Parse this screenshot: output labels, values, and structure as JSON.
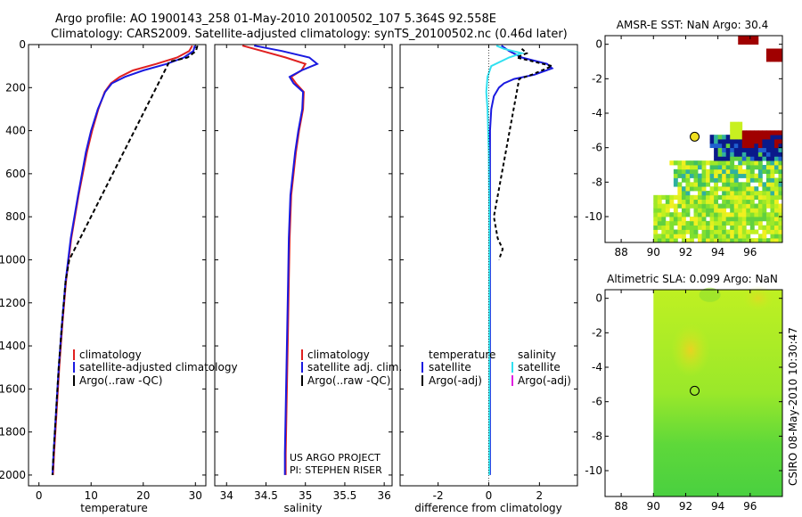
{
  "title": {
    "line1": "Argo profile: AO 1900143_258 01-May-2010 20100502_107 5.364S 92.558E",
    "line2": "Climatology: CARS2009. Satellite-adjusted climatology: synTS_20100502.nc (0.46d later)"
  },
  "colors": {
    "climatology": "#e02020",
    "satellite": "#1a1ae0",
    "argo": "#000000",
    "sal_satellite": "#30e0f0",
    "sal_argo": "#e020e0",
    "sst_land": "#ffffff"
  },
  "chart_data": [
    {
      "type": "line",
      "id": "temperature",
      "xlabel": "temperature",
      "ylabel": "",
      "xlim": [
        -2,
        32
      ],
      "ylim": [
        2050,
        0
      ],
      "xticks": [
        0,
        10,
        20,
        30
      ],
      "xtick_labels": [
        "0",
        "10",
        "20",
        "30"
      ],
      "yticks": [
        0,
        200,
        400,
        600,
        800,
        1000,
        1200,
        1400,
        1600,
        1800,
        2000
      ],
      "ytick_labels": [
        "0",
        "200",
        "400",
        "600",
        "800",
        "1000",
        "1200",
        "1400",
        "1600",
        "1800",
        "2000"
      ],
      "legend": [
        "climatology",
        "satellite-adjusted climatology",
        "Argo(..raw -QC)"
      ],
      "series": [
        {
          "name": "climatology",
          "depth": [
            5,
            30,
            60,
            90,
            120,
            150,
            180,
            220,
            300,
            400,
            500,
            700,
            900,
            1100,
            1300,
            1500,
            1700,
            1900,
            2000
          ],
          "values": [
            29.4,
            28.8,
            26.5,
            22.5,
            18,
            15.5,
            13.8,
            12.6,
            11.4,
            10.2,
            9.2,
            7.6,
            6.2,
            5.2,
            4.5,
            3.9,
            3.4,
            2.9,
            2.7
          ]
        },
        {
          "name": "satellite",
          "depth": [
            5,
            30,
            60,
            90,
            120,
            150,
            180,
            220,
            300,
            400,
            500,
            700,
            900,
            1100,
            1300,
            1500,
            1700,
            1900,
            2000
          ],
          "values": [
            29.9,
            29.6,
            27.8,
            24.5,
            20,
            16.5,
            14,
            12.7,
            11.3,
            10,
            9,
            7.5,
            6.1,
            5.1,
            4.4,
            3.8,
            3.3,
            2.8,
            2.6
          ]
        },
        {
          "name": "Argo",
          "depth": [
            5,
            30,
            60,
            80,
            1000,
            1100,
            1300,
            1500,
            1700,
            1900,
            2000
          ],
          "values": [
            30.4,
            30.1,
            28.5,
            25,
            5.8,
            5.1,
            4.4,
            3.8,
            3.3,
            2.8,
            2.6
          ]
        }
      ]
    },
    {
      "type": "line",
      "id": "salinity",
      "xlabel": "salinity",
      "xlim": [
        33.85,
        36.1
      ],
      "ylim": [
        2050,
        0
      ],
      "xticks": [
        34,
        34.5,
        35,
        35.5,
        36
      ],
      "xtick_labels": [
        "34",
        "34.5",
        "35",
        "35.5",
        "36"
      ],
      "legend": [
        "climatology",
        "satellite adj. clim.",
        "Argo(..raw -QC)"
      ],
      "annotation_line1": "US ARGO PROJECT",
      "annotation_line2": "PI: STEPHEN RISER",
      "series": [
        {
          "name": "climatology",
          "depth": [
            5,
            30,
            60,
            90,
            120,
            150,
            180,
            220,
            300,
            400,
            500,
            700,
            900,
            1100,
            1300,
            1500,
            1700,
            1900,
            2000
          ],
          "values": [
            34.2,
            34.45,
            34.75,
            35.0,
            34.95,
            34.82,
            34.88,
            34.98,
            34.97,
            34.92,
            34.88,
            34.82,
            34.8,
            34.79,
            34.78,
            34.77,
            34.76,
            34.75,
            34.75
          ]
        },
        {
          "name": "satellite",
          "depth": [
            5,
            30,
            60,
            90,
            120,
            150,
            180,
            220,
            300,
            400,
            500,
            700,
            900,
            1100,
            1300,
            1500,
            1700,
            1900,
            2000
          ],
          "values": [
            34.35,
            34.7,
            35.05,
            35.15,
            34.95,
            34.8,
            34.85,
            34.97,
            34.96,
            34.91,
            34.87,
            34.81,
            34.79,
            34.78,
            34.77,
            34.76,
            34.75,
            34.74,
            34.74
          ]
        }
      ]
    },
    {
      "type": "line",
      "id": "difference",
      "xlabel": "difference from climatology",
      "xlim": [
        -3.5,
        3.5
      ],
      "ylim": [
        2050,
        0
      ],
      "xticks": [
        -2,
        0,
        2
      ],
      "xtick_labels": [
        "-2",
        "0",
        "2"
      ],
      "legend_temperature_title": "temperature",
      "legend_salinity_title": "salinity",
      "legend_temperature": [
        "satellite",
        "Argo(-adj)"
      ],
      "legend_salinity": [
        "satellite",
        "Argo(-adj)"
      ],
      "series": [
        {
          "name": "temp satellite",
          "depth": [
            5,
            30,
            60,
            90,
            110,
            140,
            160,
            180,
            200,
            240,
            300,
            400,
            600,
            800,
            1000,
            1200,
            1500,
            1800,
            2000
          ],
          "values": [
            0.5,
            0.8,
            1.3,
            2.3,
            2.5,
            1.8,
            1.0,
            0.6,
            0.4,
            0.2,
            0.1,
            0.05,
            0.05,
            0.05,
            0.05,
            0.05,
            0.05,
            0.05,
            0.05
          ]
        },
        {
          "name": "temp Argo",
          "depth": [
            20,
            40,
            60,
            100,
            140,
            160,
            800,
            900,
            950,
            1000
          ],
          "values": [
            1.3,
            1.5,
            1.1,
            2.5,
            1.7,
            1.2,
            0.2,
            0.35,
            0.55,
            0.4
          ]
        },
        {
          "name": "sal satellite",
          "depth": [
            5,
            20,
            40,
            60,
            100,
            150,
            220,
            300,
            500,
            800,
            1000,
            1300,
            1600,
            1900,
            2000
          ],
          "values": [
            0.3,
            0.6,
            1.3,
            0.8,
            0.1,
            -0.05,
            -0.1,
            -0.05,
            0.0,
            0.02,
            0.02,
            0.02,
            0.02,
            0.02,
            0.02
          ]
        }
      ]
    },
    {
      "type": "heatmap",
      "id": "sst",
      "title": "AMSR-E SST: NaN Argo: 30.4",
      "xlim": [
        87,
        98
      ],
      "ylim": [
        -11.5,
        0.5
      ],
      "xticks": [
        88,
        90,
        92,
        94,
        96
      ],
      "xtick_labels": [
        "88",
        "90",
        "92",
        "94",
        "96"
      ],
      "yticks": [
        0,
        -2,
        -4,
        -6,
        -8,
        -10
      ],
      "ytick_labels": [
        "0",
        "-2",
        "-4",
        "-6",
        "-8",
        "-10"
      ],
      "argo_position": [
        92.558,
        -5.364
      ]
    },
    {
      "type": "heatmap",
      "id": "sla",
      "title": "Altimetric SLA: 0.099 Argo: NaN",
      "xlim": [
        87,
        98
      ],
      "ylim": [
        -11.5,
        0.5
      ],
      "xticks": [
        88,
        90,
        92,
        94,
        96
      ],
      "xtick_labels": [
        "88",
        "90",
        "92",
        "94",
        "96"
      ],
      "yticks": [
        0,
        -2,
        -4,
        -6,
        -8,
        -10
      ],
      "ytick_labels": [
        "0",
        "-2",
        "-4",
        "-6",
        "-8",
        "-10"
      ],
      "argo_position": [
        92.558,
        -5.364
      ],
      "side_label": "CSIRO 08-May-2010 10:30:47"
    }
  ]
}
